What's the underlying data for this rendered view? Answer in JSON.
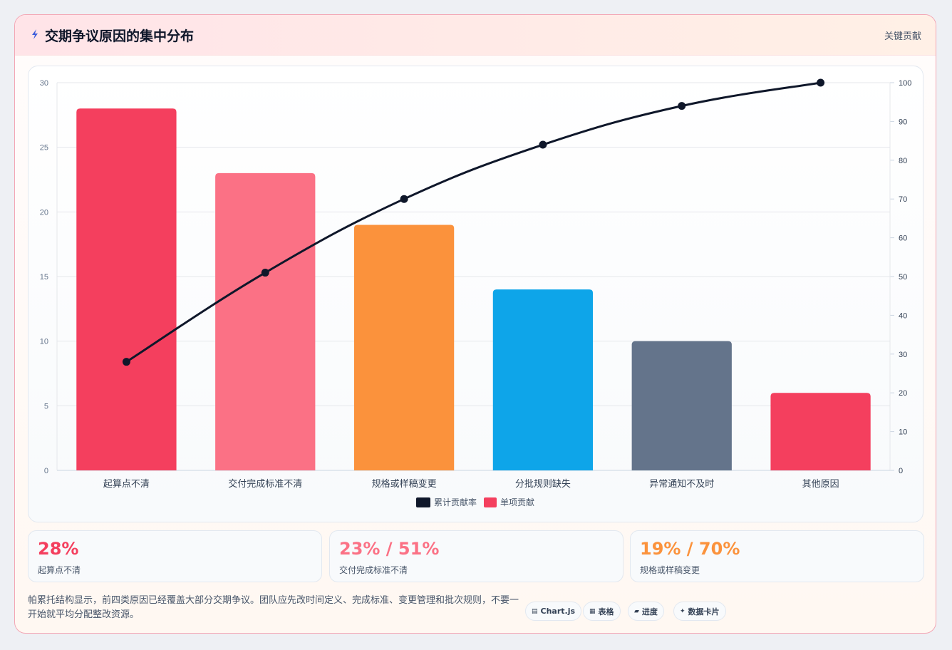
{
  "header": {
    "title": "交期争议原因的集中分布",
    "tag": "关键贡献"
  },
  "chart_data": {
    "type": "bar",
    "categories": [
      "起算点不清",
      "交付完成标准不清",
      "规格或样稿变更",
      "分批规则缺失",
      "异常通知不及时",
      "其他原因"
    ],
    "series": [
      {
        "name": "单项贡献",
        "type": "bar",
        "values": [
          28,
          23,
          19,
          14,
          10,
          6
        ]
      },
      {
        "name": "累计贡献率",
        "type": "line",
        "axis": "right",
        "values": [
          28,
          51,
          70,
          84,
          94,
          100
        ]
      }
    ],
    "bar_colors": [
      "#f43f5e",
      "#fb7185",
      "#fb923c",
      "#0ea5e9",
      "#64748b",
      "#f43f5e"
    ],
    "line_color": "#0f172a",
    "ylim": [
      0,
      30
    ],
    "y_ticks": [
      "0",
      "5",
      "10",
      "15",
      "20",
      "25",
      "30"
    ],
    "y2lim": [
      0,
      100
    ],
    "y2_ticks": [
      "0",
      "10",
      "20",
      "30",
      "40",
      "50",
      "60",
      "70",
      "80",
      "90",
      "100"
    ],
    "legend": [
      "累计贡献率",
      "单项贡献"
    ],
    "legend_colors": [
      "#0f172a",
      "#f43f5e"
    ],
    "legend_position": "bottom",
    "grid": true
  },
  "stats": [
    {
      "value": "28%",
      "label": "起算点不清",
      "color": "#f43f5e"
    },
    {
      "value": "23% / 51%",
      "label": "交付完成标准不清",
      "color": "#fb7185"
    },
    {
      "value": "19% / 70%",
      "label": "规格或样稿变更",
      "color": "#fb923c"
    }
  ],
  "note": "帕累托结构显示，前四类原因已经覆盖大部分交期争议。团队应先改时间定义、完成标准、变更管理和批次规则，不要一开始就平均分配整改资源。",
  "chips": [
    {
      "icon": "▤",
      "label": "Chart.js"
    },
    {
      "icon": "▦",
      "label": "表格"
    },
    {
      "icon": "▰",
      "label": "进度"
    },
    {
      "icon": "✦",
      "label": "数据卡片"
    }
  ]
}
